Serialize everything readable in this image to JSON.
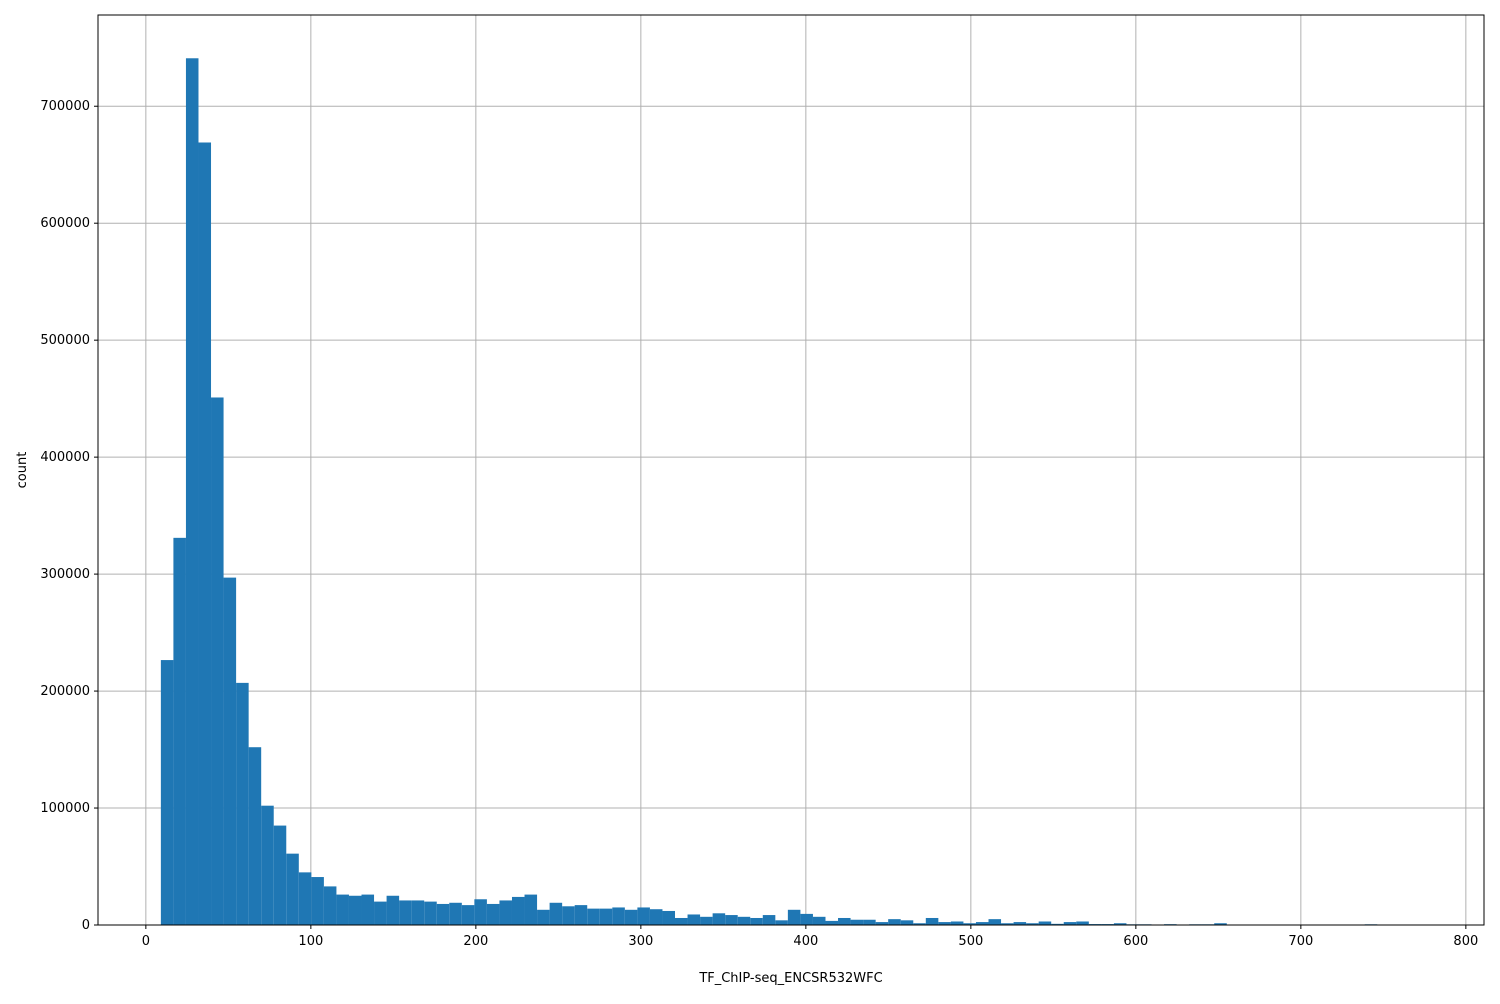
{
  "chart_data": {
    "type": "bar",
    "subtype": "histogram",
    "title": "",
    "xlabel": "TF_ChIP-seq_ENCSR532WFC",
    "ylabel": "count",
    "xlim": [
      -29,
      811
    ],
    "ylim": [
      0,
      778000
    ],
    "grid": true,
    "bar_color": "#1f77b4",
    "bin_start": 9.1,
    "bin_width": 7.6,
    "values": [
      226500,
      331000,
      741000,
      669000,
      451000,
      297000,
      207000,
      152000,
      102000,
      85000,
      61000,
      45000,
      41000,
      33000,
      26000,
      25000,
      26000,
      20000,
      25000,
      21000,
      21000,
      20000,
      18000,
      19000,
      17000,
      22000,
      18000,
      21000,
      24000,
      26000,
      13000,
      19000,
      16000,
      17000,
      14000,
      14000,
      15000,
      13000,
      15000,
      13500,
      12000,
      6000,
      9000,
      7000,
      10000,
      8500,
      7000,
      6000,
      8500,
      4000,
      13000,
      9500,
      7000,
      3500,
      6000,
      4500,
      4500,
      2500,
      5000,
      4000,
      1500,
      6000,
      2500,
      3000,
      1500,
      2500,
      5000,
      1500,
      2500,
      1500,
      3000,
      1000,
      2500,
      3000,
      800,
      800,
      1500,
      600,
      600,
      0,
      700,
      0,
      600,
      600,
      1500,
      0,
      0,
      0,
      0,
      0,
      0,
      0,
      0,
      0,
      0,
      0,
      600,
      0,
      0,
      0
    ],
    "xticks": [
      "0",
      "100",
      "200",
      "300",
      "400",
      "500",
      "600",
      "700",
      "800"
    ],
    "yticks": [
      "0",
      "100000",
      "200000",
      "300000",
      "400000",
      "500000",
      "600000",
      "700000"
    ]
  }
}
